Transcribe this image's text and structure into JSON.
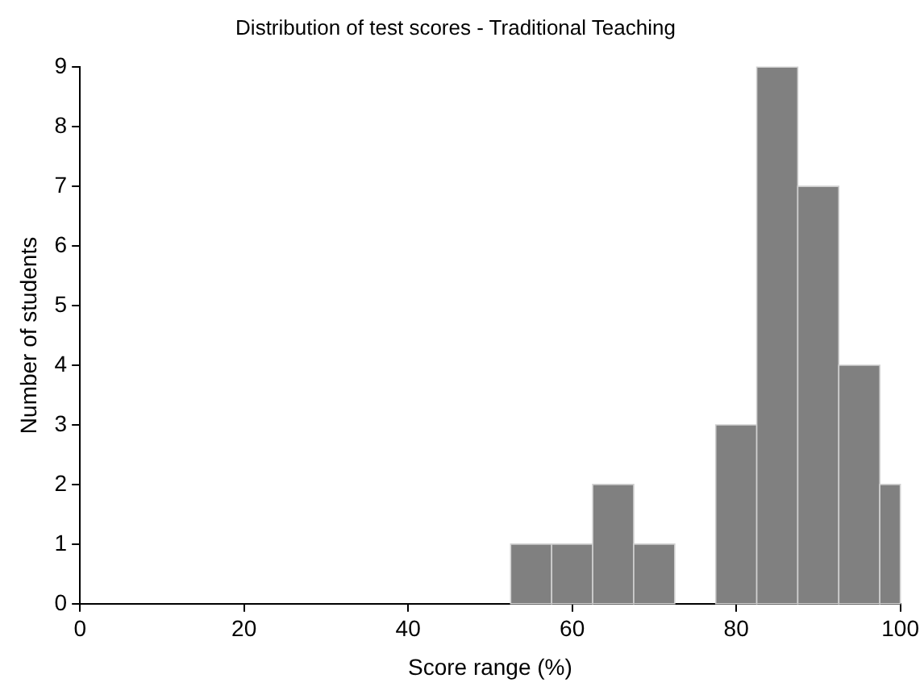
{
  "chart_data": {
    "type": "histogram",
    "title": "Distribution of test scores - Traditional Teaching",
    "xlabel": "Score range (%)",
    "ylabel": "Number of students",
    "bins": [
      52.5,
      57.5,
      62.5,
      67.5,
      72.5,
      77.5,
      82.5,
      87.5,
      92.5,
      97.5,
      100
    ],
    "values": [
      1,
      1,
      2,
      1,
      0,
      3,
      9,
      7,
      4,
      2
    ],
    "color": "#808080",
    "xlim": [
      0,
      100
    ],
    "xticks": [
      0,
      20,
      40,
      60,
      80,
      100
    ],
    "ylim": [
      0,
      9
    ],
    "yticks": [
      0,
      1,
      2,
      3,
      4,
      5,
      6,
      7,
      8,
      9
    ],
    "grid": false,
    "legend": false
  }
}
